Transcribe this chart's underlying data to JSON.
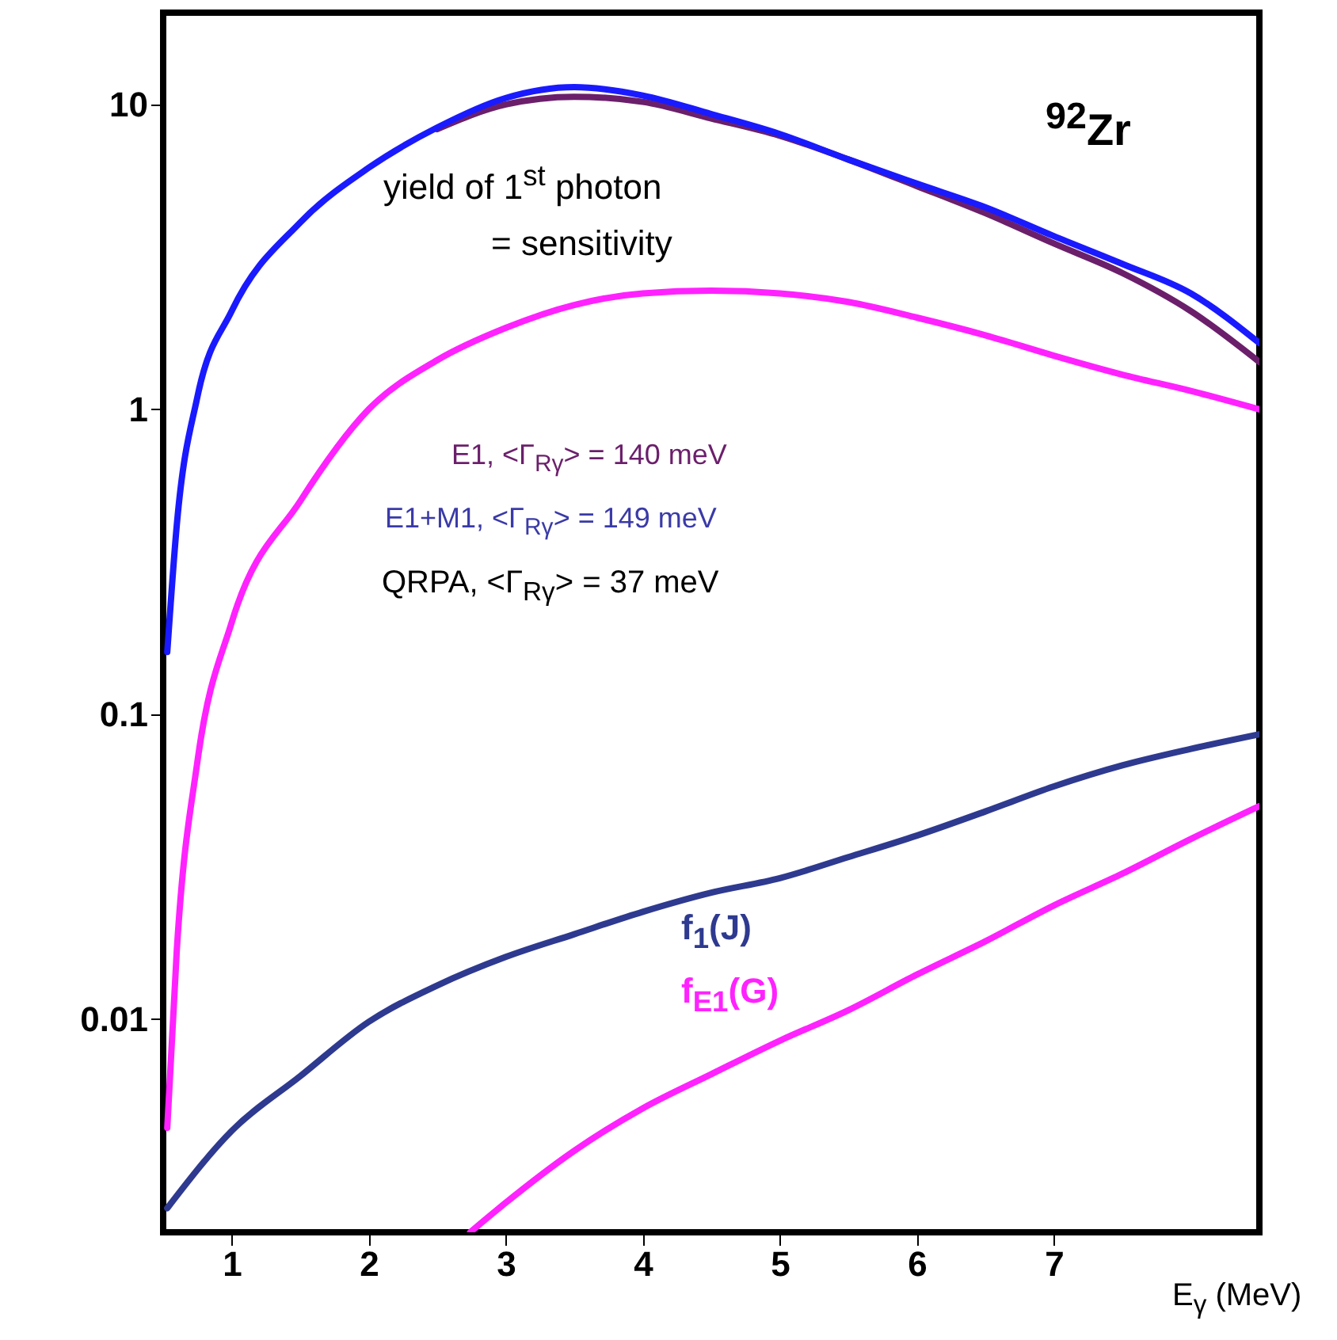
{
  "chart_data": {
    "type": "line",
    "xlabel": "E$_{γ}$ (MeV)",
    "xlim": [
      0.5,
      8.5
    ],
    "xticks": [
      1,
      2,
      3,
      4,
      5,
      6,
      7
    ],
    "ylim": [
      0.002,
      20
    ],
    "yticks": [
      {
        "value": 10,
        "label": "10"
      },
      {
        "value": 1,
        "label": "1"
      },
      {
        "value": 0.1,
        "label": "0.1"
      },
      {
        "value": 0.01,
        "label": "0.01"
      }
    ],
    "log": "y",
    "grid": false,
    "line_style": "solid",
    "marker": "none",
    "series": [
      {
        "color": "#6b1f6b",
        "x": [
          2.5,
          3,
          3.5,
          4,
          4.5,
          5,
          5.5,
          6,
          6.5,
          7,
          7.5,
          8,
          8.5
        ],
        "values": [
          8.3,
          10,
          10.6,
          10.2,
          9,
          7.9,
          6.6,
          5.4,
          4.4,
          3.5,
          2.8,
          2.1,
          1.43
        ]
      },
      {
        "color": "#1a1aff",
        "x": [
          0.53,
          0.6,
          0.75,
          1,
          1.5,
          2,
          2.5,
          3,
          3.5,
          4,
          4.5,
          5,
          5.5,
          6,
          6.5,
          7,
          7.5,
          8,
          8.5
        ],
        "values": [
          0.16,
          0.42,
          1.1,
          2.1,
          4.1,
          6.2,
          8.4,
          10.5,
          11.4,
          10.7,
          9.3,
          8,
          6.6,
          5.5,
          4.6,
          3.7,
          3,
          2.4,
          1.65
        ]
      },
      {
        "color": "#ff22ff",
        "x": [
          0.53,
          0.6,
          0.75,
          1,
          1.5,
          2,
          2.5,
          3,
          3.5,
          4,
          4.5,
          5,
          5.5,
          6,
          6.5,
          7,
          7.5,
          8,
          8.5
        ],
        "values": [
          0.0044,
          0.017,
          0.07,
          0.2,
          0.5,
          1,
          1.45,
          1.85,
          2.2,
          2.4,
          2.45,
          2.4,
          2.25,
          2,
          1.75,
          1.5,
          1.3,
          1.15,
          1
        ]
      },
      {
        "color": "#2e3a8f",
        "x": [
          0.53,
          1,
          1.5,
          2,
          2.5,
          3,
          3.5,
          4,
          4.5,
          5,
          5.5,
          6,
          6.5,
          7,
          7.5,
          8,
          8.5
        ],
        "values": [
          0.0024,
          0.0043,
          0.0065,
          0.0098,
          0.0129,
          0.016,
          0.019,
          0.0225,
          0.026,
          0.029,
          0.034,
          0.04,
          0.048,
          0.058,
          0.068,
          0.077,
          0.086
        ]
      },
      {
        "color": "#ff22ff",
        "x": [
          2.74,
          3,
          3.5,
          4,
          4.5,
          5,
          5.5,
          6,
          6.5,
          7,
          7.5,
          8,
          8.5
        ],
        "values": [
          0.002,
          0.0025,
          0.0037,
          0.0051,
          0.0066,
          0.0085,
          0.0107,
          0.014,
          0.018,
          0.0236,
          0.03,
          0.039,
          0.05
        ]
      }
    ],
    "annotations": [
      "$^{92}$Zr",
      "yield of 1$^{st}$ photon",
      "= sensitivity",
      "E1, <Γ$_{Rγ}$> = 140 meV",
      "E1+M1, <Γ$_{Rγ}$> = 149 meV",
      "QRPA, <Γ$_{Rγ}$> =  37 meV",
      "f$_{1}$(J)",
      "f$_{E1}$(G)"
    ]
  }
}
